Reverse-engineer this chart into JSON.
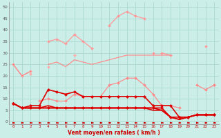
{
  "xlabel": "Vent moyen/en rafales ( km/h )",
  "background_color": "#cceee8",
  "grid_color": "#aad8d0",
  "x_ticks": [
    0,
    1,
    2,
    3,
    4,
    5,
    6,
    7,
    8,
    9,
    10,
    11,
    12,
    13,
    14,
    15,
    16,
    17,
    18,
    19,
    20,
    21,
    22,
    23
  ],
  "ylim": [
    -1,
    52
  ],
  "yticks": [
    0,
    5,
    10,
    15,
    20,
    25,
    30,
    35,
    40,
    45,
    50
  ],
  "series": [
    {
      "name": "light_peak",
      "color": "#ff9999",
      "lw": 0.9,
      "marker": "D",
      "markersize": 2.0,
      "y": [
        25,
        20,
        22,
        null,
        35,
        36,
        34,
        38,
        35,
        32,
        null,
        42,
        46,
        48,
        46,
        45,
        null,
        30,
        29,
        null,
        null,
        null,
        33,
        null
      ]
    },
    {
      "name": "light_rising",
      "color": "#ff9999",
      "lw": 0.9,
      "marker": "D",
      "markersize": 2.0,
      "y": [
        null,
        null,
        null,
        null,
        null,
        null,
        null,
        null,
        null,
        null,
        null,
        null,
        null,
        null,
        null,
        null,
        30,
        null,
        null,
        null,
        null,
        null,
        null,
        16
      ]
    },
    {
      "name": "light_upper2",
      "color": "#ffaaaa",
      "lw": 0.9,
      "marker": "D",
      "markersize": 2.0,
      "y": [
        null,
        null,
        21,
        null,
        24,
        null,
        null,
        29,
        null,
        null,
        null,
        null,
        null,
        null,
        null,
        null,
        null,
        null,
        null,
        null,
        null,
        null,
        null,
        null
      ]
    },
    {
      "name": "light_diagonal1",
      "color": "#ffaaaa",
      "lw": 0.85,
      "marker": null,
      "markersize": 0,
      "y": [
        null,
        null,
        null,
        null,
        null,
        null,
        null,
        null,
        null,
        null,
        27,
        null,
        null,
        null,
        null,
        null,
        null,
        null,
        null,
        null,
        null,
        null,
        33,
        null
      ]
    },
    {
      "name": "medium_upper",
      "color": "#ff8888",
      "lw": 0.85,
      "marker": null,
      "markersize": 0,
      "y": [
        25,
        20,
        22,
        null,
        25,
        26,
        24,
        27,
        26,
        25,
        26,
        27,
        28,
        29,
        29,
        29,
        29,
        29,
        29,
        null,
        null,
        null,
        null,
        null
      ]
    },
    {
      "name": "medium_lower",
      "color": "#ff8888",
      "lw": 0.85,
      "marker": null,
      "markersize": 0,
      "y": [
        null,
        null,
        null,
        null,
        null,
        null,
        null,
        null,
        null,
        null,
        null,
        null,
        null,
        null,
        null,
        null,
        null,
        null,
        null,
        null,
        null,
        null,
        null,
        15
      ]
    },
    {
      "name": "medium_mid",
      "color": "#ff8888",
      "lw": 0.85,
      "marker": "D",
      "markersize": 2.0,
      "y": [
        null,
        null,
        null,
        9,
        10,
        9,
        9,
        12,
        11,
        11,
        11,
        16,
        17,
        19,
        19,
        16,
        12,
        7,
        7,
        6,
        null,
        16,
        14,
        16
      ]
    },
    {
      "name": "dark_spiky",
      "color": "#dd0000",
      "lw": 1.2,
      "marker": "D",
      "markersize": 2.2,
      "y": [
        8,
        6,
        7,
        7,
        14,
        13,
        12,
        13,
        11,
        11,
        11,
        11,
        11,
        11,
        11,
        11,
        7,
        7,
        7,
        2,
        2,
        3,
        3,
        3
      ]
    },
    {
      "name": "dark_flat1",
      "color": "#dd0000",
      "lw": 1.2,
      "marker": "D",
      "markersize": 2.2,
      "y": [
        8,
        6,
        6,
        6,
        6,
        6,
        6,
        6,
        6,
        6,
        6,
        6,
        6,
        6,
        6,
        6,
        6,
        6,
        2,
        2,
        2,
        3,
        3,
        3
      ]
    },
    {
      "name": "dark_flat2",
      "color": "#dd0000",
      "lw": 1.2,
      "marker": null,
      "markersize": 0,
      "y": [
        8,
        6,
        6,
        6,
        6,
        6,
        6,
        6,
        6,
        6,
        6,
        6,
        6,
        6,
        6,
        6,
        6,
        5,
        2,
        1,
        2,
        3,
        3,
        3
      ]
    },
    {
      "name": "dark_flat3",
      "color": "#dd0000",
      "lw": 1.2,
      "marker": null,
      "markersize": 0,
      "y": [
        8,
        6,
        6,
        6,
        7,
        6,
        6,
        6,
        6,
        6,
        6,
        6,
        6,
        6,
        6,
        6,
        5,
        5,
        2,
        1,
        2,
        3,
        3,
        3
      ]
    }
  ],
  "arrow_color": "#cc0000",
  "tick_color": "#cc0000",
  "label_color": "#cc0000",
  "ytick_color": "#555555"
}
